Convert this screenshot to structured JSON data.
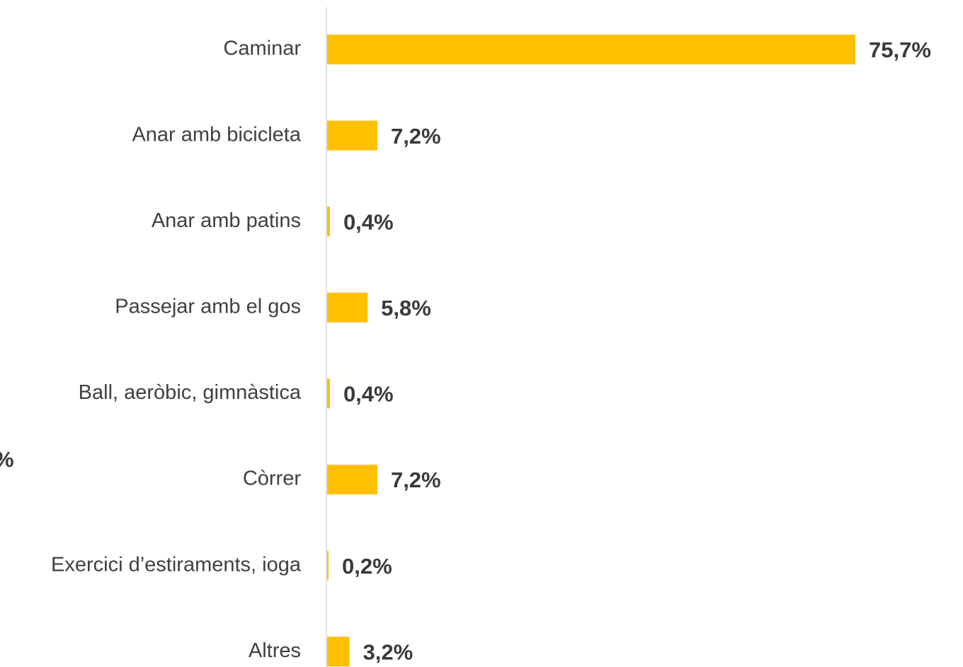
{
  "chart_data": {
    "type": "barh",
    "categories": [
      "Caminar",
      "Anar amb bicicleta",
      "Anar amb patins",
      "Passejar amb el gos",
      "Ball, aeròbic, gimnàstica",
      "Còrrer",
      "Exercici d’estiraments, ioga",
      "Altres"
    ],
    "values": [
      75.7,
      7.2,
      0.4,
      5.8,
      0.4,
      7.2,
      0.2,
      3.2
    ],
    "value_labels": [
      "75,7%",
      "7,2%",
      "0,4%",
      "5,8%",
      "0,4%",
      "7,2%",
      "0,2%",
      "3,2%"
    ],
    "color": "#ffc000",
    "annotations": [
      "%"
    ]
  }
}
